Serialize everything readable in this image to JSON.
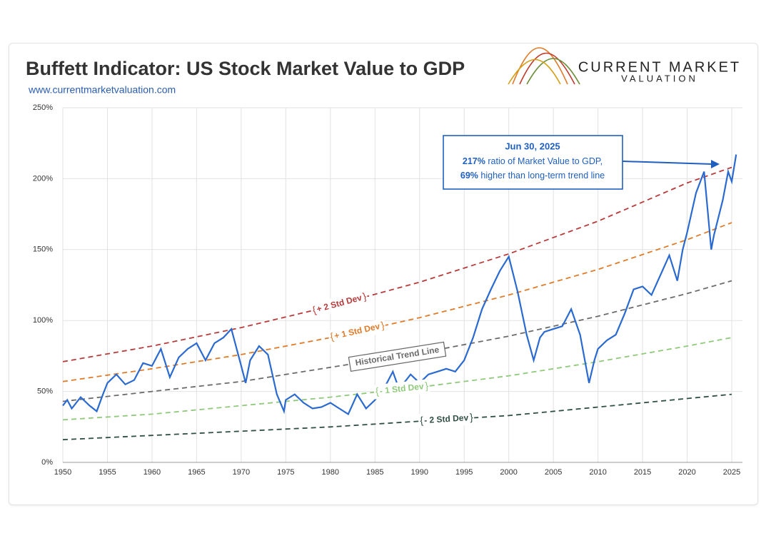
{
  "chart_data": {
    "type": "line",
    "title": "Buffett Indicator: US Stock Market Value to GDP",
    "subtitle": "www.currentmarketvaluation.com",
    "logo": [
      "CURRENT MARKET",
      "VALUATION"
    ],
    "annotation": {
      "heading": "Jun 30, 2025",
      "lines": [
        {
          "bold": "217%",
          "text": " ratio of Market Value to GDP,"
        },
        {
          "bold": "69%",
          "text": " higher than long-term trend line"
        }
      ]
    },
    "xlim": [
      1950,
      2025
    ],
    "xticks": [
      1950,
      1955,
      1960,
      1965,
      1970,
      1975,
      1980,
      1985,
      1990,
      1995,
      2000,
      2005,
      2010,
      2015,
      2020,
      2025
    ],
    "ylim": [
      0,
      250
    ],
    "yticks": [
      {
        "value": 0,
        "label": "0%"
      },
      {
        "value": 50,
        "label": "50%"
      },
      {
        "value": 100,
        "label": "100%"
      },
      {
        "value": 150,
        "label": "150%"
      },
      {
        "value": 200,
        "label": "200%"
      },
      {
        "value": 250,
        "label": "250%"
      }
    ],
    "grid": true,
    "series": [
      {
        "name": "+ 2 Std Dev",
        "color": "#b83a3a",
        "dashed": true,
        "x": [
          1950,
          1960,
          1970,
          1980,
          1990,
          2000,
          2010,
          2020,
          2025
        ],
        "values": [
          71,
          82,
          95,
          110,
          127,
          147,
          170,
          197,
          208
        ]
      },
      {
        "name": "+ 1 Std Dev",
        "color": "#e07b2a",
        "dashed": true,
        "x": [
          1950,
          1960,
          1970,
          1980,
          1990,
          2000,
          2010,
          2020,
          2025
        ],
        "values": [
          57,
          66,
          76,
          88,
          102,
          118,
          136,
          157,
          169
        ]
      },
      {
        "name": "Historical Trend Line",
        "color": "#6b6b6b",
        "dashed": true,
        "x": [
          1950,
          1960,
          1970,
          1980,
          1990,
          2000,
          2010,
          2020,
          2025
        ],
        "values": [
          43,
          50,
          57,
          67,
          77,
          89,
          103,
          119,
          128
        ]
      },
      {
        "name": "- 1 Std Dev",
        "color": "#8fc97a",
        "dashed": true,
        "x": [
          1950,
          1960,
          1970,
          1980,
          1990,
          2000,
          2010,
          2020,
          2025
        ],
        "values": [
          30,
          34,
          40,
          46,
          53,
          61,
          71,
          82,
          88
        ]
      },
      {
        "name": "- 2 Std Dev",
        "color": "#2f4f45",
        "dashed": true,
        "x": [
          1950,
          1960,
          1970,
          1980,
          1990,
          2000,
          2010,
          2020,
          2025
        ],
        "values": [
          16,
          19,
          22,
          25,
          29,
          33,
          39,
          45,
          48
        ]
      },
      {
        "name": "Market Value to GDP",
        "color": "#2a6ad0",
        "dashed": false,
        "x": [
          1950,
          1950.5,
          1951,
          1952,
          1953,
          1953.8,
          1954.5,
          1955,
          1956,
          1957,
          1958,
          1959,
          1960,
          1961,
          1962,
          1963,
          1964,
          1965,
          1966,
          1967,
          1968,
          1968.9,
          1970,
          1970.5,
          1971,
          1972,
          1973,
          1974,
          1974.8,
          1975,
          1976,
          1977,
          1978,
          1979,
          1980,
          1981,
          1982,
          1983,
          1984,
          1985,
          1986,
          1987,
          1987.8,
          1988,
          1989,
          1990,
          1991,
          1992,
          1993,
          1994,
          1995,
          1996,
          1997,
          1998,
          1999,
          2000,
          2001,
          2002,
          2002.8,
          2003.5,
          2004,
          2005,
          2006,
          2007,
          2008,
          2009,
          2009.6,
          2010,
          2011,
          2012,
          2013,
          2014,
          2015,
          2016,
          2017,
          2018,
          2018.9,
          2019.5,
          2020,
          2021,
          2021.9,
          2022.7,
          2023,
          2024,
          2024.6,
          2025,
          2025.5
        ],
        "values": [
          40,
          44,
          38,
          46,
          40,
          36,
          48,
          56,
          62,
          55,
          58,
          70,
          68,
          80,
          60,
          74,
          80,
          84,
          72,
          84,
          88,
          94,
          68,
          56,
          72,
          82,
          76,
          48,
          36,
          44,
          48,
          42,
          38,
          39,
          42,
          38,
          34,
          48,
          38,
          44,
          52,
          64,
          50,
          54,
          62,
          56,
          62,
          64,
          66,
          64,
          72,
          88,
          108,
          122,
          135,
          145,
          120,
          90,
          72,
          88,
          92,
          94,
          96,
          108,
          90,
          56,
          72,
          80,
          86,
          90,
          105,
          122,
          124,
          118,
          132,
          146,
          128,
          150,
          162,
          190,
          205,
          150,
          160,
          185,
          205,
          198,
          217
        ]
      }
    ]
  }
}
